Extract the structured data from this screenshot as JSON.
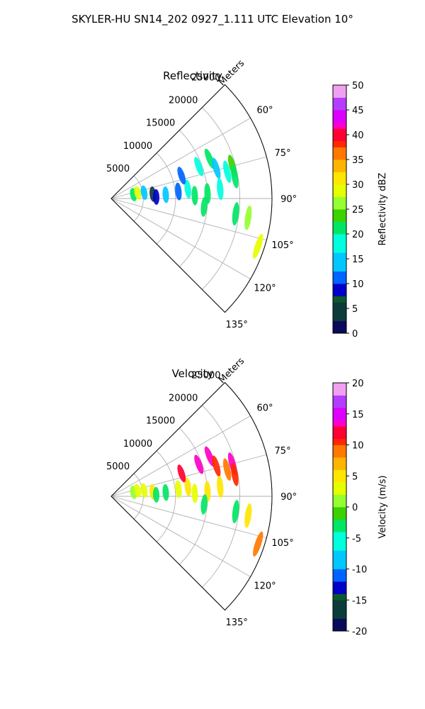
{
  "suptitle": "SKYLER-HU  SN14_202  0927_1.111 UTC Elevation 10°",
  "chart_data": [
    {
      "type": "ppi",
      "title": "Reflectivity",
      "range_label": "Meters",
      "range_ticks": [
        5000,
        10000,
        15000,
        20000,
        25000
      ],
      "angle_ticks": [
        "60°",
        "75°",
        "90°",
        "105°",
        "120°",
        "135°"
      ],
      "angle_range": [
        45,
        135
      ],
      "range_max": 25000,
      "colorbar": {
        "label": "Reflectivity dBZ",
        "ticks": [
          "0",
          "5",
          "10",
          "15",
          "20",
          "25",
          "30",
          "35",
          "40",
          "45",
          "50"
        ],
        "min": 0,
        "max": 50
      },
      "cells": [
        {
          "az": 80,
          "r": 3500,
          "v": 22
        },
        {
          "az": 78,
          "r": 4200,
          "v": 28
        },
        {
          "az": 80,
          "r": 5200,
          "v": 15
        },
        {
          "az": 84,
          "r": 6500,
          "v": 5
        },
        {
          "az": 88,
          "r": 7000,
          "v": 8
        },
        {
          "az": 86,
          "r": 8500,
          "v": 14
        },
        {
          "az": 84,
          "r": 10500,
          "v": 12
        },
        {
          "az": 83,
          "r": 12000,
          "v": 16
        },
        {
          "az": 72,
          "r": 11500,
          "v": 12
        },
        {
          "az": 70,
          "r": 14500,
          "v": 18
        },
        {
          "az": 68,
          "r": 16500,
          "v": 22
        },
        {
          "az": 88,
          "r": 13000,
          "v": 20
        },
        {
          "az": 87,
          "r": 15000,
          "v": 22
        },
        {
          "az": 74,
          "r": 17000,
          "v": 14
        },
        {
          "az": 77,
          "r": 18500,
          "v": 16
        },
        {
          "az": 75,
          "r": 19500,
          "v": 24
        },
        {
          "az": 80,
          "r": 19500,
          "v": 20
        },
        {
          "az": 85,
          "r": 17000,
          "v": 16
        },
        {
          "az": 95,
          "r": 14500,
          "v": 22
        },
        {
          "az": 97,
          "r": 19500,
          "v": 20
        },
        {
          "az": 98,
          "r": 21500,
          "v": 26
        },
        {
          "az": 108,
          "r": 24000,
          "v": 28
        }
      ]
    },
    {
      "type": "ppi",
      "title": "Velocity",
      "range_label": "Meters",
      "range_ticks": [
        5000,
        10000,
        15000,
        20000,
        25000
      ],
      "angle_ticks": [
        "60°",
        "75°",
        "90°",
        "105°",
        "120°",
        "135°"
      ],
      "angle_range": [
        45,
        135
      ],
      "range_max": 25000,
      "colorbar": {
        "label": "Velocity (m/s)",
        "ticks": [
          "-20",
          "-15",
          "-10",
          "-5",
          "0",
          "5",
          "10",
          "15",
          "20"
        ],
        "min": -20,
        "max": 20
      },
      "cells": [
        {
          "az": 80,
          "r": 3500,
          "v": 0
        },
        {
          "az": 78,
          "r": 4200,
          "v": 3
        },
        {
          "az": 80,
          "r": 5200,
          "v": 2
        },
        {
          "az": 84,
          "r": 6500,
          "v": 4
        },
        {
          "az": 88,
          "r": 7000,
          "v": -2
        },
        {
          "az": 86,
          "r": 8500,
          "v": -3
        },
        {
          "az": 84,
          "r": 10500,
          "v": 3
        },
        {
          "az": 83,
          "r": 12000,
          "v": 5
        },
        {
          "az": 72,
          "r": 11500,
          "v": 12
        },
        {
          "az": 70,
          "r": 14500,
          "v": 14
        },
        {
          "az": 68,
          "r": 16500,
          "v": 13
        },
        {
          "az": 88,
          "r": 13000,
          "v": 2
        },
        {
          "az": 87,
          "r": 15000,
          "v": 4
        },
        {
          "az": 74,
          "r": 17000,
          "v": 10
        },
        {
          "az": 77,
          "r": 18500,
          "v": 8
        },
        {
          "az": 75,
          "r": 19500,
          "v": 14
        },
        {
          "az": 80,
          "r": 19500,
          "v": 11
        },
        {
          "az": 85,
          "r": 17000,
          "v": 5
        },
        {
          "az": 95,
          "r": 14500,
          "v": -4
        },
        {
          "az": 97,
          "r": 19500,
          "v": -3
        },
        {
          "az": 98,
          "r": 21500,
          "v": 4
        },
        {
          "az": 108,
          "r": 24000,
          "v": 8
        }
      ]
    }
  ]
}
